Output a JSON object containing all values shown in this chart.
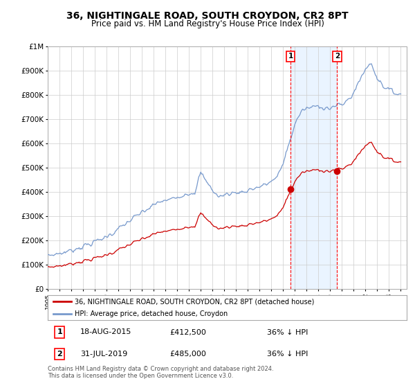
{
  "title": "36, NIGHTINGALE ROAD, SOUTH CROYDON, CR2 8PT",
  "subtitle": "Price paid vs. HM Land Registry's House Price Index (HPI)",
  "title_fontsize": 10,
  "subtitle_fontsize": 8.5,
  "background_color": "#ffffff",
  "plot_bg_color": "#ffffff",
  "grid_color": "#cccccc",
  "ylim": [
    0,
    1000000
  ],
  "yticks": [
    0,
    100000,
    200000,
    300000,
    400000,
    500000,
    600000,
    700000,
    800000,
    900000,
    1000000
  ],
  "ytick_labels": [
    "£0",
    "£100K",
    "£200K",
    "£300K",
    "£400K",
    "£500K",
    "£600K",
    "£700K",
    "£800K",
    "£900K",
    "£1M"
  ],
  "hpi_color": "#7799cc",
  "sale_color": "#cc0000",
  "sale1_year": 2015.625,
  "sale2_year": 2019.583,
  "sale1_value": 412500,
  "sale2_value": 485000,
  "legend_label_red": "36, NIGHTINGALE ROAD, SOUTH CROYDON, CR2 8PT (detached house)",
  "legend_label_blue": "HPI: Average price, detached house, Croydon",
  "sale1_date": "18-AUG-2015",
  "sale2_date": "31-JUL-2019",
  "sale1_pct": "36% ↓ HPI",
  "sale2_pct": "36% ↓ HPI",
  "footer": "Contains HM Land Registry data © Crown copyright and database right 2024.\nThis data is licensed under the Open Government Licence v3.0.",
  "xlim_start": 1995.0,
  "xlim_end": 2025.5,
  "span_color": "#ddeeff"
}
